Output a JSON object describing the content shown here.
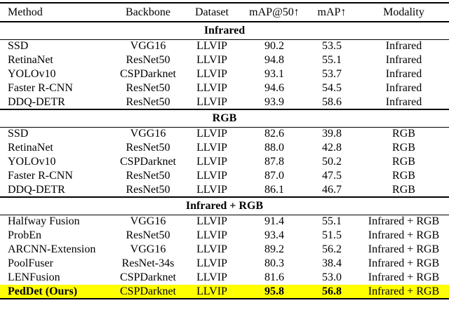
{
  "colors": {
    "highlight": "#ffff00",
    "text": "#000000",
    "background": "#ffffff"
  },
  "table": {
    "columns": [
      "Method",
      "Backbone",
      "Dataset",
      "mAP@50↑",
      "mAP↑",
      "Modality"
    ],
    "sections": [
      {
        "title": "Infrared",
        "rows": [
          {
            "cells": [
              "SSD",
              "VGG16",
              "LLVIP",
              "90.2",
              "53.5",
              "Infrared"
            ]
          },
          {
            "cells": [
              "RetinaNet",
              "ResNet50",
              "LLVIP",
              "94.8",
              "55.1",
              "Infrared"
            ]
          },
          {
            "cells": [
              "YOLOv10",
              "CSPDarknet",
              "LLVIP",
              "93.1",
              "53.7",
              "Infrared"
            ]
          },
          {
            "cells": [
              "Faster R-CNN",
              "ResNet50",
              "LLVIP",
              "94.6",
              "54.5",
              "Infrared"
            ]
          },
          {
            "cells": [
              "DDQ-DETR",
              "ResNet50",
              "LLVIP",
              "93.9",
              "58.6",
              "Infrared"
            ]
          }
        ]
      },
      {
        "title": "RGB",
        "rows": [
          {
            "cells": [
              "SSD",
              "VGG16",
              "LLVIP",
              "82.6",
              "39.8",
              "RGB"
            ]
          },
          {
            "cells": [
              "RetinaNet",
              "ResNet50",
              "LLVIP",
              "88.0",
              "42.8",
              "RGB"
            ]
          },
          {
            "cells": [
              "YOLOv10",
              "CSPDarknet",
              "LLVIP",
              "87.8",
              "50.2",
              "RGB"
            ]
          },
          {
            "cells": [
              "Faster R-CNN",
              "ResNet50",
              "LLVIP",
              "87.0",
              "47.5",
              "RGB"
            ]
          },
          {
            "cells": [
              "DDQ-DETR",
              "ResNet50",
              "LLVIP",
              "86.1",
              "46.7",
              "RGB"
            ]
          }
        ]
      },
      {
        "title": "Infrared + RGB",
        "rows": [
          {
            "cells": [
              "Halfway Fusion",
              "VGG16",
              "LLVIP",
              "91.4",
              "55.1",
              "Infrared + RGB"
            ]
          },
          {
            "cells": [
              "ProbEn",
              "ResNet50",
              "LLVIP",
              "93.4",
              "51.5",
              "Infrared + RGB"
            ]
          },
          {
            "cells": [
              "ARCNN-Extension",
              "VGG16",
              "LLVIP",
              "89.2",
              "56.2",
              "Infrared + RGB"
            ]
          },
          {
            "cells": [
              "PoolFuser",
              "ResNet-34s",
              "LLVIP",
              "80.3",
              "38.4",
              "Infrared + RGB"
            ]
          },
          {
            "cells": [
              "LENFusion",
              "CSPDarknet",
              "LLVIP",
              "81.6",
              "53.0",
              "Infrared + RGB"
            ]
          },
          {
            "cells": [
              "PedDet (Ours)",
              "CSPDarknet",
              "LLVIP",
              "95.8",
              "56.8",
              "Infrared + RGB"
            ],
            "highlight": true,
            "bold_cells": [
              0,
              3,
              4
            ]
          }
        ]
      }
    ]
  }
}
